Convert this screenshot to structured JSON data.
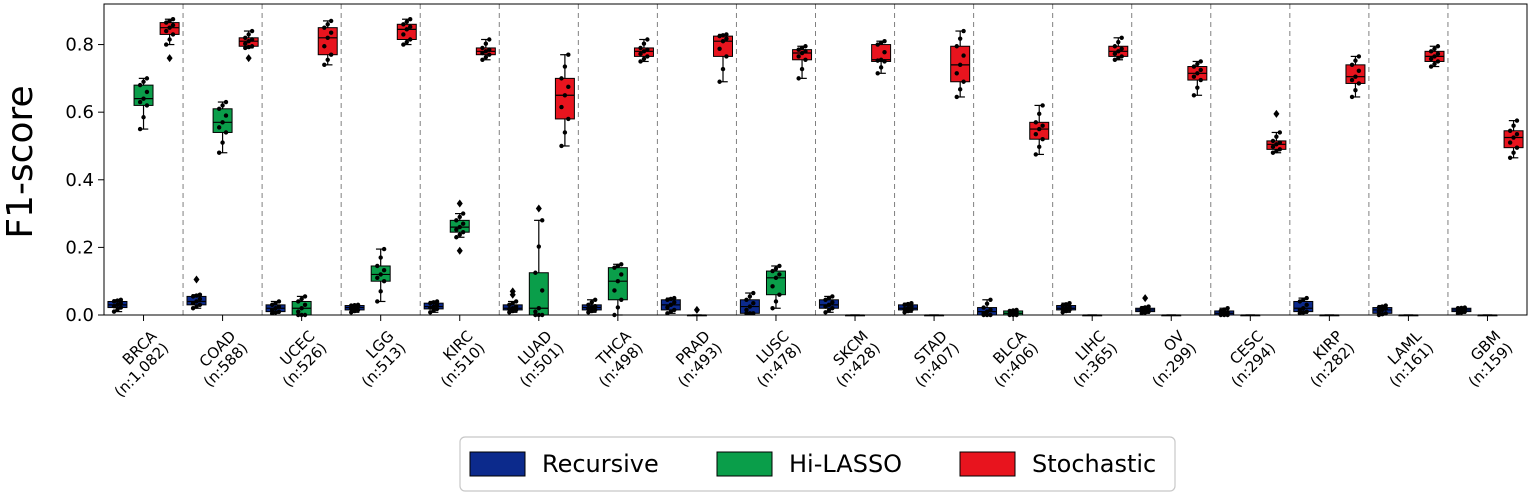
{
  "chart_data": {
    "type": "box",
    "ylabel": "F1-score",
    "xlabel": "",
    "ylim": [
      0,
      0.92
    ],
    "yticks": [
      "0.0",
      "0.2",
      "0.4",
      "0.6",
      "0.8"
    ],
    "grid": false,
    "legend_placement": "bottom-center",
    "categories": [
      {
        "name": "BRCA",
        "n": "(n:1,082)"
      },
      {
        "name": "COAD",
        "n": "(n:588)"
      },
      {
        "name": "UCEC",
        "n": "(n:526)"
      },
      {
        "name": "LGG",
        "n": "(n:513)"
      },
      {
        "name": "KIRC",
        "n": "(n:510)"
      },
      {
        "name": "LUAD",
        "n": "(n:501)"
      },
      {
        "name": "THCA",
        "n": "(n:498)"
      },
      {
        "name": "PRAD",
        "n": "(n:493)"
      },
      {
        "name": "LUSC",
        "n": "(n:478)"
      },
      {
        "name": "SKCM",
        "n": "(n:428)"
      },
      {
        "name": "STAD",
        "n": "(n:407)"
      },
      {
        "name": "BLCA",
        "n": "(n:406)"
      },
      {
        "name": "LIHC",
        "n": "(n:365)"
      },
      {
        "name": "OV",
        "n": "(n:299)"
      },
      {
        "name": "CESC",
        "n": "(n:294)"
      },
      {
        "name": "KIRP",
        "n": "(n:282)"
      },
      {
        "name": "LAML",
        "n": "(n:161)"
      },
      {
        "name": "GBM",
        "n": "(n:159)"
      }
    ],
    "series": [
      {
        "name": "Recursive",
        "color": "#0c2a8c",
        "boxes": [
          {
            "min": 0.01,
            "q1": 0.022,
            "median": 0.03,
            "q3": 0.04,
            "max": 0.045,
            "outliers": []
          },
          {
            "min": 0.02,
            "q1": 0.03,
            "median": 0.04,
            "q3": 0.055,
            "max": 0.06,
            "outliers": [
              0.105
            ]
          },
          {
            "min": 0.005,
            "q1": 0.01,
            "median": 0.02,
            "q3": 0.03,
            "max": 0.04,
            "outliers": []
          },
          {
            "min": 0.008,
            "q1": 0.015,
            "median": 0.022,
            "q3": 0.028,
            "max": 0.03,
            "outliers": []
          },
          {
            "min": 0.008,
            "q1": 0.018,
            "median": 0.025,
            "q3": 0.035,
            "max": 0.04,
            "outliers": []
          },
          {
            "min": 0.008,
            "q1": 0.015,
            "median": 0.02,
            "q3": 0.03,
            "max": 0.04,
            "outliers": [
              0.06,
              0.07
            ]
          },
          {
            "min": 0.008,
            "q1": 0.015,
            "median": 0.022,
            "q3": 0.03,
            "max": 0.045,
            "outliers": []
          },
          {
            "min": 0.005,
            "q1": 0.015,
            "median": 0.03,
            "q3": 0.045,
            "max": 0.05,
            "outliers": []
          },
          {
            "min": 0.005,
            "q1": 0.005,
            "median": 0.025,
            "q3": 0.045,
            "max": 0.065,
            "outliers": []
          },
          {
            "min": 0.008,
            "q1": 0.02,
            "median": 0.03,
            "q3": 0.045,
            "max": 0.055,
            "outliers": []
          },
          {
            "min": 0.008,
            "q1": 0.015,
            "median": 0.02,
            "q3": 0.03,
            "max": 0.035,
            "outliers": []
          },
          {
            "min": 0.0,
            "q1": 0.0,
            "median": 0.01,
            "q3": 0.022,
            "max": 0.045,
            "outliers": []
          },
          {
            "min": 0.008,
            "q1": 0.015,
            "median": 0.02,
            "q3": 0.028,
            "max": 0.035,
            "outliers": []
          },
          {
            "min": 0.005,
            "q1": 0.01,
            "median": 0.015,
            "q3": 0.02,
            "max": 0.025,
            "outliers": [
              0.05
            ]
          },
          {
            "min": 0.0,
            "q1": 0.0,
            "median": 0.005,
            "q3": 0.012,
            "max": 0.02,
            "outliers": []
          },
          {
            "min": 0.005,
            "q1": 0.01,
            "median": 0.02,
            "q3": 0.04,
            "max": 0.05,
            "outliers": []
          },
          {
            "min": 0.0,
            "q1": 0.005,
            "median": 0.015,
            "q3": 0.022,
            "max": 0.028,
            "outliers": []
          },
          {
            "min": 0.005,
            "q1": 0.01,
            "median": 0.015,
            "q3": 0.02,
            "max": 0.022,
            "outliers": []
          }
        ]
      },
      {
        "name": "Hi-LASSO",
        "color": "#0a9e4a",
        "boxes": [
          {
            "min": 0.55,
            "q1": 0.62,
            "median": 0.64,
            "q3": 0.68,
            "max": 0.7,
            "outliers": []
          },
          {
            "min": 0.48,
            "q1": 0.54,
            "median": 0.57,
            "q3": 0.61,
            "max": 0.63,
            "outliers": []
          },
          {
            "min": 0.0,
            "q1": 0.0,
            "median": 0.02,
            "q3": 0.04,
            "max": 0.055,
            "outliers": []
          },
          {
            "min": 0.04,
            "q1": 0.1,
            "median": 0.12,
            "q3": 0.145,
            "max": 0.195,
            "outliers": []
          },
          {
            "min": 0.23,
            "q1": 0.245,
            "median": 0.26,
            "q3": 0.28,
            "max": 0.3,
            "outliers": [
              0.19,
              0.33
            ]
          },
          {
            "min": 0.0,
            "q1": 0.0,
            "median": 0.02,
            "q3": 0.125,
            "max": 0.28,
            "outliers": [
              0.315
            ]
          },
          {
            "min": 0.0,
            "q1": 0.045,
            "median": 0.1,
            "q3": 0.14,
            "max": 0.15,
            "outliers": []
          },
          {
            "min": 0.0,
            "q1": 0.0,
            "median": 0.0,
            "q3": 0.0,
            "max": 0.0,
            "outliers": [
              0.015
            ]
          },
          {
            "min": 0.02,
            "q1": 0.06,
            "median": 0.11,
            "q3": 0.13,
            "max": 0.145,
            "outliers": []
          },
          {
            "min": 0.0,
            "q1": 0.0,
            "median": 0.0,
            "q3": 0.0,
            "max": 0.0,
            "outliers": []
          },
          {
            "min": 0.0,
            "q1": 0.0,
            "median": 0.0,
            "q3": 0.0,
            "max": 0.0,
            "outliers": []
          },
          {
            "min": 0.0,
            "q1": 0.0,
            "median": 0.005,
            "q3": 0.012,
            "max": 0.015,
            "outliers": []
          },
          {
            "min": 0.0,
            "q1": 0.0,
            "median": 0.0,
            "q3": 0.0,
            "max": 0.0,
            "outliers": []
          },
          {
            "min": 0.0,
            "q1": 0.0,
            "median": 0.0,
            "q3": 0.0,
            "max": 0.0,
            "outliers": []
          },
          {
            "min": 0.0,
            "q1": 0.0,
            "median": 0.0,
            "q3": 0.0,
            "max": 0.0,
            "outliers": []
          },
          {
            "min": 0.0,
            "q1": 0.0,
            "median": 0.0,
            "q3": 0.0,
            "max": 0.0,
            "outliers": []
          },
          {
            "min": 0.0,
            "q1": 0.0,
            "median": 0.0,
            "q3": 0.0,
            "max": 0.0,
            "outliers": []
          },
          {
            "min": 0.0,
            "q1": 0.0,
            "median": 0.0,
            "q3": 0.0,
            "max": 0.0,
            "outliers": []
          }
        ]
      },
      {
        "name": "Stochastic",
        "color": "#e8141e",
        "boxes": [
          {
            "min": 0.8,
            "q1": 0.83,
            "median": 0.85,
            "q3": 0.865,
            "max": 0.875,
            "outliers": [
              0.76
            ]
          },
          {
            "min": 0.79,
            "q1": 0.795,
            "median": 0.81,
            "q3": 0.82,
            "max": 0.84,
            "outliers": [
              0.76
            ]
          },
          {
            "min": 0.74,
            "q1": 0.77,
            "median": 0.82,
            "q3": 0.85,
            "max": 0.87,
            "outliers": []
          },
          {
            "min": 0.8,
            "q1": 0.815,
            "median": 0.845,
            "q3": 0.86,
            "max": 0.875,
            "outliers": []
          },
          {
            "min": 0.755,
            "q1": 0.77,
            "median": 0.78,
            "q3": 0.79,
            "max": 0.815,
            "outliers": []
          },
          {
            "min": 0.5,
            "q1": 0.58,
            "median": 0.65,
            "q3": 0.7,
            "max": 0.77,
            "outliers": []
          },
          {
            "min": 0.75,
            "q1": 0.765,
            "median": 0.78,
            "q3": 0.79,
            "max": 0.815,
            "outliers": []
          },
          {
            "min": 0.69,
            "q1": 0.765,
            "median": 0.81,
            "q3": 0.825,
            "max": 0.83,
            "outliers": []
          },
          {
            "min": 0.7,
            "q1": 0.755,
            "median": 0.775,
            "q3": 0.785,
            "max": 0.795,
            "outliers": []
          },
          {
            "min": 0.715,
            "q1": 0.75,
            "median": 0.755,
            "q3": 0.8,
            "max": 0.81,
            "outliers": []
          },
          {
            "min": 0.645,
            "q1": 0.69,
            "median": 0.74,
            "q3": 0.795,
            "max": 0.84,
            "outliers": []
          },
          {
            "min": 0.475,
            "q1": 0.52,
            "median": 0.55,
            "q3": 0.57,
            "max": 0.62,
            "outliers": []
          },
          {
            "min": 0.755,
            "q1": 0.765,
            "median": 0.78,
            "q3": 0.795,
            "max": 0.82,
            "outliers": []
          },
          {
            "min": 0.65,
            "q1": 0.695,
            "median": 0.715,
            "q3": 0.735,
            "max": 0.75,
            "outliers": []
          },
          {
            "min": 0.48,
            "q1": 0.49,
            "median": 0.505,
            "q3": 0.515,
            "max": 0.54,
            "outliers": [
              0.595
            ]
          },
          {
            "min": 0.645,
            "q1": 0.685,
            "median": 0.705,
            "q3": 0.74,
            "max": 0.765,
            "outliers": []
          },
          {
            "min": 0.735,
            "q1": 0.75,
            "median": 0.765,
            "q3": 0.78,
            "max": 0.795,
            "outliers": []
          },
          {
            "min": 0.465,
            "q1": 0.495,
            "median": 0.525,
            "q3": 0.545,
            "max": 0.575,
            "outliers": []
          }
        ]
      }
    ]
  }
}
